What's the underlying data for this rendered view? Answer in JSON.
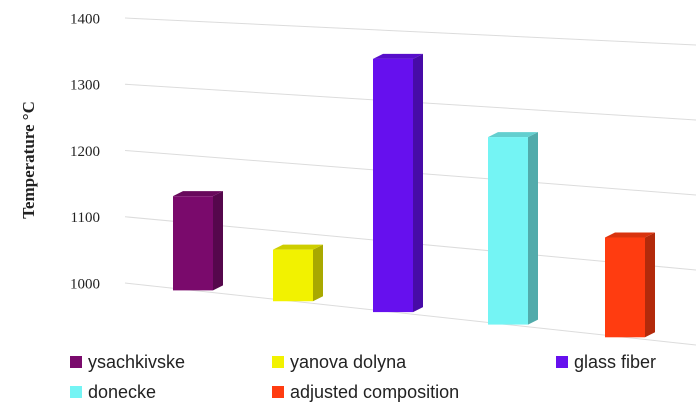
{
  "chart_data": {
    "type": "bar3d",
    "ylabel": "Temperature  °C",
    "categories": [
      "ysachkivske",
      "yanova dolyna",
      "glass fiber",
      "donecke",
      "adjusted composition"
    ],
    "values": [
      1140,
      1075,
      1360,
      1260,
      1135
    ],
    "colors": [
      "#7a0a6c",
      "#f2f200",
      "#6610ee",
      "#74f4f4",
      "#ff3c10"
    ],
    "ylim": [
      1000,
      1400
    ],
    "yticks": [
      1000,
      1100,
      1200,
      1300,
      1400
    ],
    "grid": true
  }
}
